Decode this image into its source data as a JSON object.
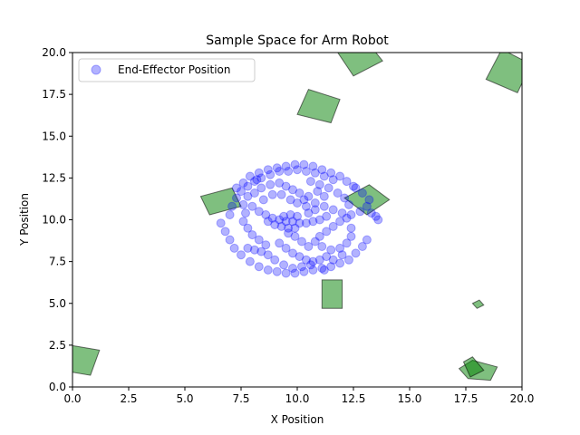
{
  "chart_data": {
    "type": "scatter",
    "title": "Sample Space for Arm Robot",
    "xlabel": "X Position",
    "ylabel": "Y Position",
    "xlim": [
      0,
      20
    ],
    "ylim": [
      0,
      20
    ],
    "xticks": [
      "0.0",
      "2.5",
      "5.0",
      "7.5",
      "10.0",
      "12.5",
      "15.0",
      "17.5",
      "20.0"
    ],
    "yticks": [
      "0.0",
      "2.5",
      "5.0",
      "7.5",
      "10.0",
      "12.5",
      "15.0",
      "17.5",
      "20.0"
    ],
    "grid": false,
    "legend": {
      "placement": "top-left",
      "entries": [
        "End-Effector Position"
      ]
    },
    "series": [
      {
        "name": "End-Effector Position",
        "color": "#0000ff",
        "marker": "circle",
        "alpha": 0.3,
        "points": [
          [
            7.3,
            11.9
          ],
          [
            7.6,
            12.2
          ],
          [
            7.9,
            12.6
          ],
          [
            8.3,
            12.8
          ],
          [
            8.7,
            13.0
          ],
          [
            9.1,
            13.1
          ],
          [
            9.5,
            13.2
          ],
          [
            9.9,
            13.3
          ],
          [
            10.3,
            13.3
          ],
          [
            10.7,
            13.2
          ],
          [
            11.1,
            13.0
          ],
          [
            11.5,
            12.8
          ],
          [
            11.9,
            12.6
          ],
          [
            12.2,
            12.3
          ],
          [
            12.5,
            12.0
          ],
          [
            7.0,
            10.3
          ],
          [
            7.1,
            10.8
          ],
          [
            7.3,
            11.3
          ],
          [
            7.5,
            11.7
          ],
          [
            7.8,
            12.0
          ],
          [
            8.1,
            12.3
          ],
          [
            8.4,
            12.5
          ],
          [
            8.8,
            12.7
          ],
          [
            9.2,
            12.9
          ],
          [
            9.6,
            12.9
          ],
          [
            10.0,
            13.0
          ],
          [
            10.4,
            12.9
          ],
          [
            10.8,
            12.8
          ],
          [
            11.2,
            12.6
          ],
          [
            11.6,
            12.4
          ],
          [
            6.6,
            9.8
          ],
          [
            6.8,
            9.3
          ],
          [
            7.0,
            8.8
          ],
          [
            7.2,
            8.3
          ],
          [
            7.5,
            7.9
          ],
          [
            7.9,
            7.5
          ],
          [
            8.3,
            7.2
          ],
          [
            8.7,
            7.0
          ],
          [
            9.1,
            6.9
          ],
          [
            9.5,
            6.8
          ],
          [
            9.9,
            6.8
          ],
          [
            10.3,
            6.9
          ],
          [
            10.7,
            7.0
          ],
          [
            11.1,
            7.1
          ],
          [
            11.5,
            7.2
          ],
          [
            11.9,
            7.4
          ],
          [
            12.3,
            7.6
          ],
          [
            12.6,
            8.0
          ],
          [
            12.9,
            8.4
          ],
          [
            13.1,
            8.8
          ],
          [
            13.1,
            10.8
          ],
          [
            13.3,
            10.4
          ],
          [
            13.5,
            10.2
          ],
          [
            13.6,
            10.0
          ],
          [
            13.2,
            11.2
          ],
          [
            12.9,
            11.6
          ],
          [
            12.6,
            11.9
          ],
          [
            12.8,
            10.5
          ],
          [
            12.4,
            10.3
          ],
          [
            12.0,
            10.4
          ],
          [
            11.6,
            10.6
          ],
          [
            11.2,
            10.8
          ],
          [
            10.8,
            11.0
          ],
          [
            10.5,
            11.4
          ],
          [
            8.0,
            10.8
          ],
          [
            8.3,
            10.5
          ],
          [
            8.6,
            10.3
          ],
          [
            8.9,
            10.1
          ],
          [
            9.2,
            10.0
          ],
          [
            9.5,
            9.9
          ],
          [
            9.8,
            9.9
          ],
          [
            10.1,
            9.8
          ],
          [
            10.4,
            9.8
          ],
          [
            10.7,
            9.9
          ],
          [
            9.0,
            9.7
          ],
          [
            9.3,
            9.6
          ],
          [
            9.6,
            9.5
          ],
          [
            9.9,
            9.5
          ],
          [
            8.7,
            9.9
          ],
          [
            9.4,
            10.2
          ],
          [
            9.7,
            10.3
          ],
          [
            10.0,
            10.2
          ],
          [
            8.1,
            11.6
          ],
          [
            8.4,
            11.9
          ],
          [
            8.8,
            12.1
          ],
          [
            9.2,
            12.2
          ],
          [
            9.5,
            12.0
          ],
          [
            9.8,
            11.8
          ],
          [
            10.1,
            11.6
          ],
          [
            10.3,
            11.2
          ],
          [
            10.4,
            10.8
          ],
          [
            8.5,
            11.2
          ],
          [
            8.9,
            11.5
          ],
          [
            9.3,
            11.5
          ],
          [
            9.7,
            11.2
          ],
          [
            10.0,
            11.0
          ],
          [
            9.2,
            8.6
          ],
          [
            9.5,
            8.3
          ],
          [
            9.8,
            8.0
          ],
          [
            10.1,
            7.8
          ],
          [
            10.4,
            7.6
          ],
          [
            10.7,
            7.5
          ],
          [
            11.0,
            7.6
          ],
          [
            11.3,
            7.8
          ],
          [
            8.6,
            8.5
          ],
          [
            8.3,
            8.8
          ],
          [
            8.0,
            9.1
          ],
          [
            7.8,
            9.5
          ],
          [
            7.6,
            9.9
          ],
          [
            11.0,
            9.0
          ],
          [
            11.3,
            9.3
          ],
          [
            11.6,
            9.6
          ],
          [
            11.9,
            9.9
          ],
          [
            12.2,
            10.1
          ],
          [
            11.1,
            8.4
          ],
          [
            11.5,
            8.2
          ],
          [
            11.9,
            8.3
          ],
          [
            12.2,
            8.6
          ],
          [
            12.4,
            9.0
          ],
          [
            12.4,
            9.5
          ],
          [
            10.6,
            12.3
          ],
          [
            11.0,
            12.1
          ],
          [
            11.4,
            11.9
          ],
          [
            11.8,
            11.6
          ],
          [
            12.1,
            11.3
          ],
          [
            12.3,
            10.9
          ],
          [
            11.2,
            11.4
          ],
          [
            10.9,
            11.7
          ],
          [
            8.2,
            12.4
          ],
          [
            7.8,
            11.4
          ],
          [
            7.6,
            10.9
          ],
          [
            7.7,
            10.4
          ],
          [
            9.0,
            7.6
          ],
          [
            8.7,
            7.9
          ],
          [
            8.4,
            8.1
          ],
          [
            8.1,
            8.2
          ],
          [
            7.8,
            8.3
          ],
          [
            9.4,
            7.3
          ],
          [
            9.8,
            7.1
          ],
          [
            10.2,
            7.2
          ],
          [
            10.6,
            7.3
          ],
          [
            11.2,
            7.0
          ],
          [
            11.6,
            7.6
          ],
          [
            12.0,
            7.9
          ],
          [
            10.5,
            8.4
          ],
          [
            10.2,
            8.7
          ],
          [
            9.9,
            9.0
          ],
          [
            9.6,
            9.2
          ],
          [
            10.8,
            8.7
          ],
          [
            11.0,
            10.0
          ],
          [
            11.3,
            10.2
          ],
          [
            10.5,
            10.4
          ],
          [
            10.8,
            10.6
          ]
        ]
      }
    ],
    "obstacles": {
      "color": "#008000",
      "alpha": 0.5,
      "polygons": [
        [
          [
            11.6,
            20.4
          ],
          [
            12.9,
            21.0
          ],
          [
            13.8,
            19.5
          ],
          [
            12.5,
            18.6
          ]
        ],
        [
          [
            18.4,
            18.4
          ],
          [
            19.8,
            17.6
          ],
          [
            20.4,
            19.3
          ],
          [
            19.1,
            20.2
          ]
        ],
        [
          [
            10.0,
            16.3
          ],
          [
            11.5,
            15.8
          ],
          [
            11.9,
            17.2
          ],
          [
            10.5,
            17.8
          ]
        ],
        [
          [
            5.7,
            11.4
          ],
          [
            6.1,
            10.3
          ],
          [
            7.5,
            10.8
          ],
          [
            7.1,
            11.9
          ]
        ],
        [
          [
            12.1,
            11.3
          ],
          [
            13.2,
            12.1
          ],
          [
            14.1,
            11.2
          ],
          [
            13.1,
            10.3
          ]
        ],
        [
          [
            11.1,
            6.4
          ],
          [
            12.0,
            6.4
          ],
          [
            12.0,
            4.7
          ],
          [
            11.1,
            4.7
          ]
        ],
        [
          [
            17.8,
            5.0
          ],
          [
            18.0,
            4.7
          ],
          [
            18.3,
            4.9
          ],
          [
            18.1,
            5.2
          ]
        ],
        [
          [
            -0.1,
            2.5
          ],
          [
            1.2,
            2.2
          ],
          [
            0.8,
            0.7
          ],
          [
            -0.5,
            1.0
          ]
        ],
        [
          [
            17.2,
            1.1
          ],
          [
            17.8,
            1.6
          ],
          [
            18.9,
            1.2
          ],
          [
            18.6,
            0.4
          ],
          [
            17.6,
            0.5
          ]
        ],
        [
          [
            17.4,
            1.5
          ],
          [
            17.8,
            1.8
          ],
          [
            18.3,
            1.0
          ],
          [
            17.7,
            0.6
          ]
        ]
      ]
    }
  }
}
